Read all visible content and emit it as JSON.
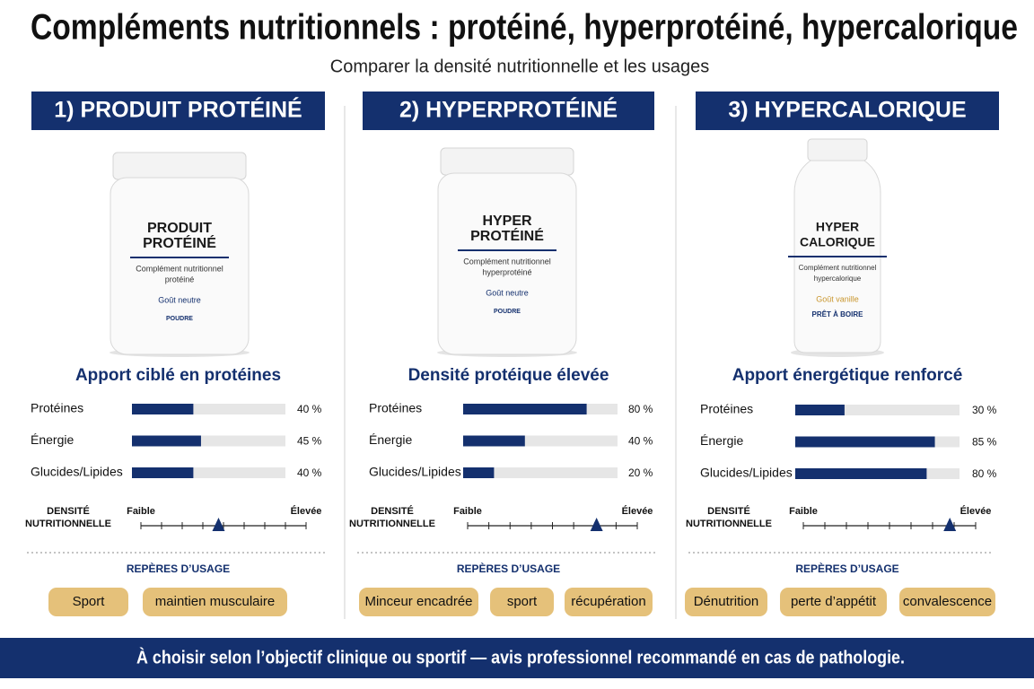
{
  "header": {
    "title": "Compléments nutritionnels : protéiné, hyperprotéiné, hypercalorique",
    "subtitle": "Comparer la densité nutritionnelle et les usages"
  },
  "bar_lim": [
    0,
    100
  ],
  "density_lim": [
    0,
    100
  ],
  "columns": [
    {
      "heading": "1) PRODUIT PROTÉINÉ",
      "bottle": {
        "name_lines": [
          "PRODUIT",
          "PROTÉINÉ"
        ],
        "description_lines": [
          "Complément nutritionnel",
          "protéiné"
        ],
        "flavor": "Goût neutre",
        "form": "POUDRE"
      },
      "subheading": "Apport ciblé en protéines",
      "bars": {
        "categories": [
          "Protéines",
          "Énergie",
          "Glucides/Lipides"
        ],
        "values": [
          40,
          45,
          40
        ],
        "value_labels": [
          "40 %",
          "45 %",
          "40 %"
        ]
      },
      "density": {
        "label_lines": [
          "DENSITÉ",
          "NUTRITIONNELLE"
        ],
        "low": "Faible",
        "high": "Élevée",
        "value": 47
      },
      "usage": {
        "title": "REPÈRES D’USAGE",
        "tags": [
          "Sport",
          "maintien musculaire"
        ]
      }
    },
    {
      "heading": "2) HYPERPROTÉINÉ",
      "bottle": {
        "name_lines": [
          "HYPER",
          "PROTÉINÉ"
        ],
        "description_lines": [
          "Complément nutritionnel",
          "hyperprotéiné"
        ],
        "flavor": "Goût neutre",
        "form": "POUDRE"
      },
      "subheading": "Densité protéique élevée",
      "bars": {
        "categories": [
          "Protéines",
          "Énergie",
          "Glucides/Lipides"
        ],
        "values": [
          80,
          40,
          20
        ],
        "value_labels": [
          "80 %",
          "40 %",
          "20 %"
        ]
      },
      "density": {
        "label_lines": [
          "DENSITÉ",
          "NUTRITIONNELLE"
        ],
        "low": "Faible",
        "high": "Élevée",
        "value": 76
      },
      "usage": {
        "title": "REPÈRES D’USAGE",
        "tags": [
          "Minceur encadrée",
          "sport",
          "récupération"
        ]
      }
    },
    {
      "heading": "3) HYPERCALORIQUE",
      "bottle": {
        "name_lines": [
          "HYPER",
          "CALORIQUE"
        ],
        "description_lines": [
          "Complément nutritionnel",
          "hypercalorique"
        ],
        "flavor": "Goût vanille",
        "form": "PRÊT À BOIRE"
      },
      "subheading": "Apport énergétique renforcé",
      "bars": {
        "categories": [
          "Protéines",
          "Énergie",
          "Glucides/Lipides"
        ],
        "values": [
          30,
          85,
          80
        ],
        "value_labels": [
          "30 %",
          "85 %",
          "80 %"
        ]
      },
      "density": {
        "label_lines": [
          "DENSITÉ",
          "NUTRITIONNELLE"
        ],
        "low": "Faible",
        "high": "Élevée",
        "value": 85
      },
      "usage": {
        "title": "REPÈRES D’USAGE",
        "tags": [
          "Dénutrition",
          "perte d’appétit",
          "convalescence"
        ]
      }
    }
  ],
  "footer": "À choisir selon l’objectif clinique ou sportif — avis professionnel recommandé en cas de pathologie."
}
